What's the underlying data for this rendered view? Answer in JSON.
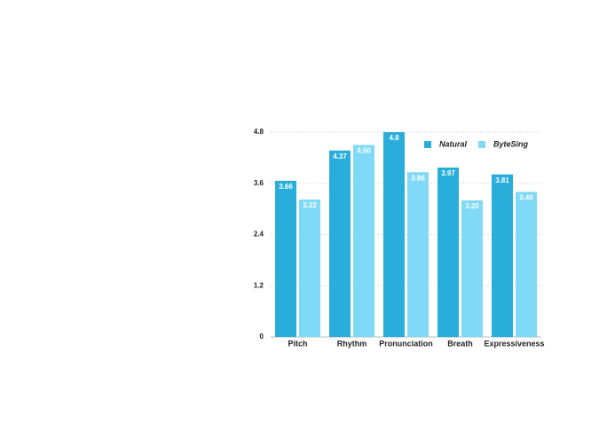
{
  "chart_data": {
    "type": "bar",
    "categories": [
      "Pitch",
      "Rhythm",
      "Pronunciation",
      "Breath",
      "Expressiveness"
    ],
    "series": [
      {
        "name": "Natural",
        "color": "#29aedb",
        "values": [
          3.66,
          4.37,
          4.8,
          3.97,
          3.81
        ]
      },
      {
        "name": "ByteSing",
        "color": "#80d9f7",
        "values": [
          3.22,
          4.5,
          3.86,
          3.2,
          3.4
        ],
        "value_labels": [
          "3.22",
          "4.50",
          "3.86",
          "3.20",
          "3.40"
        ]
      }
    ],
    "ylim": [
      0,
      4.8
    ],
    "yticks": [
      0,
      1.2,
      2.4,
      3.6,
      4.8
    ],
    "grid": true,
    "legend": "top-right"
  }
}
